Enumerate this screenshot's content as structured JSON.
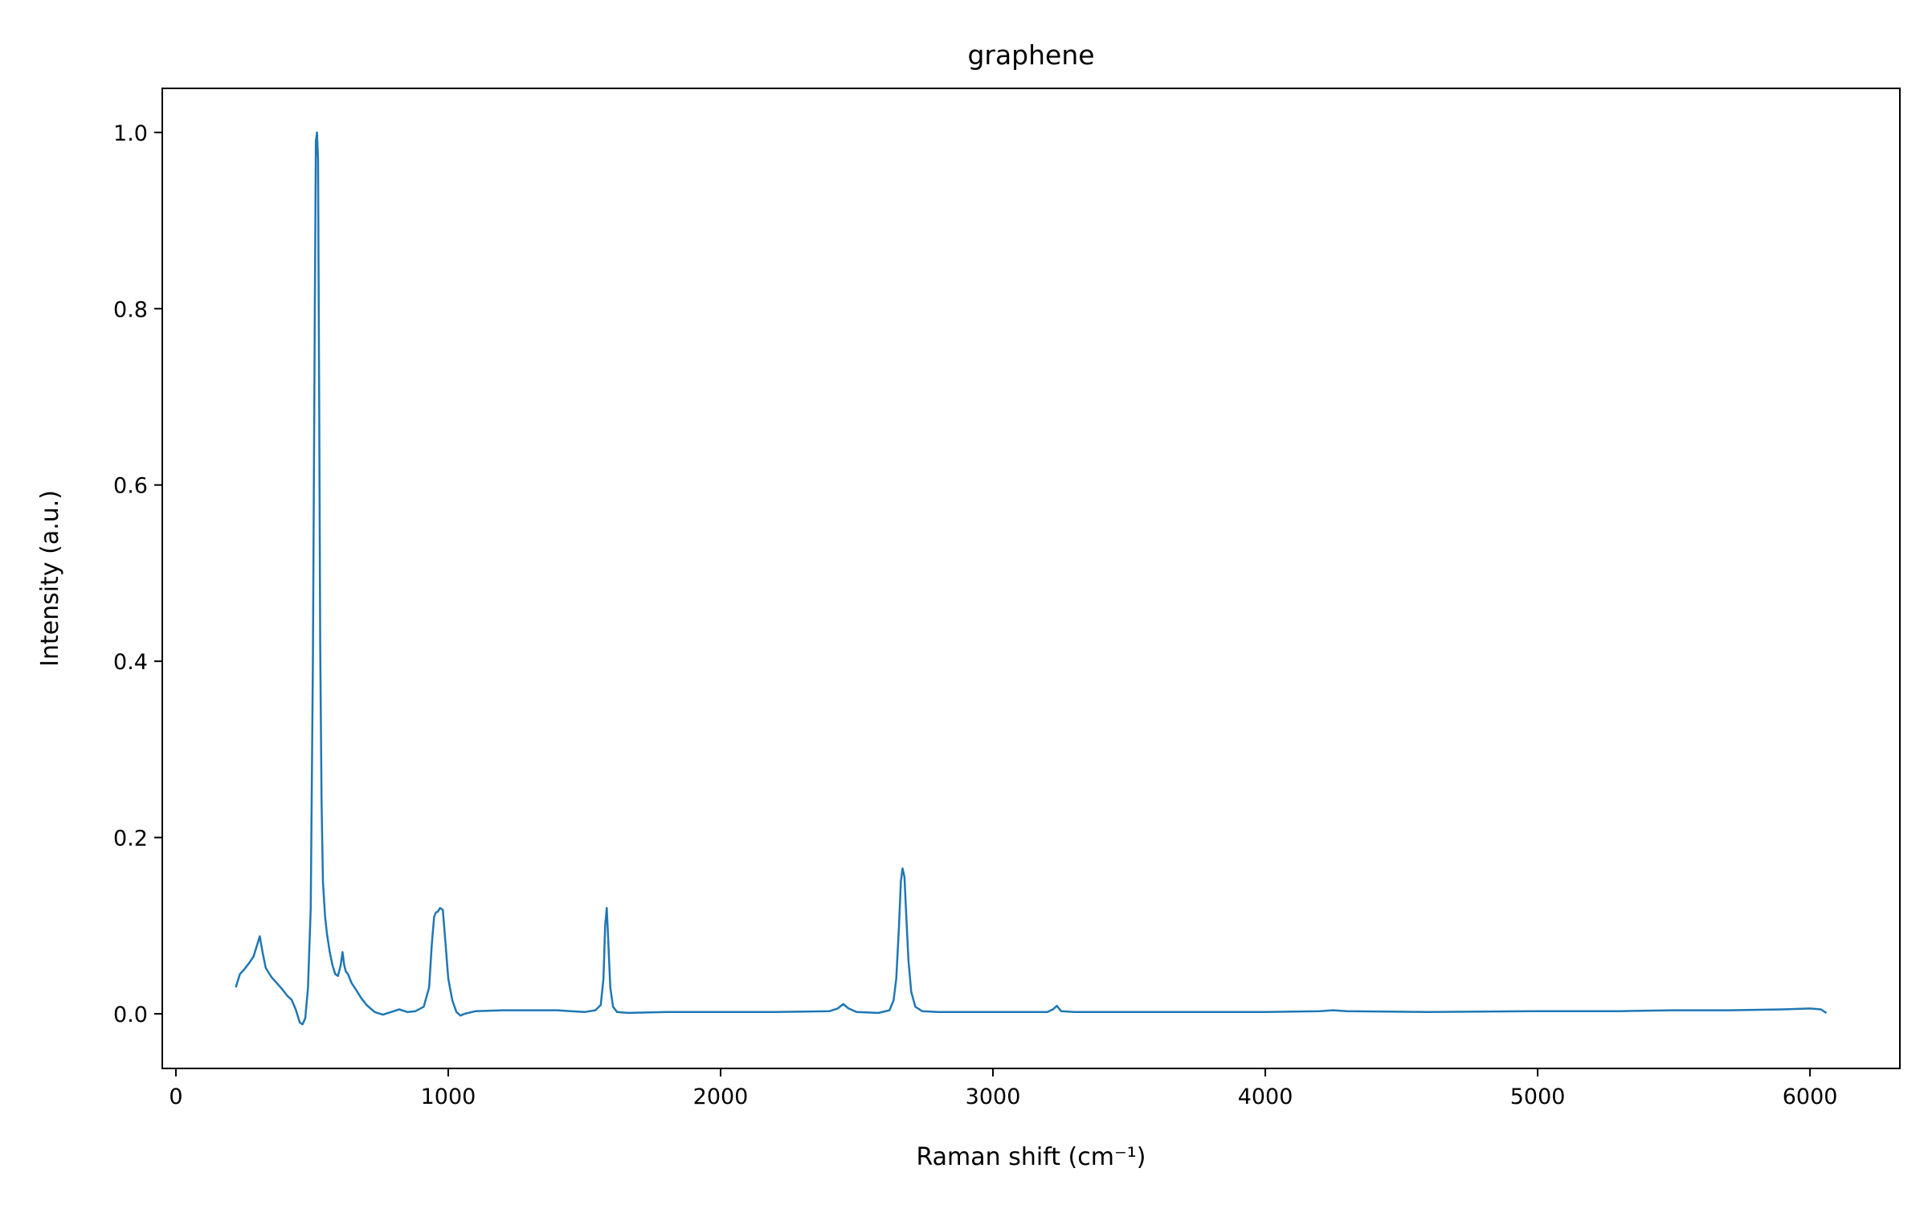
{
  "chart_data": {
    "type": "line",
    "title": "graphene",
    "xlabel": "Raman shift (cm⁻¹)",
    "ylabel": "Intensity (a.u.)",
    "xlim": [
      -50,
      6330
    ],
    "ylim": [
      -0.062,
      1.05
    ],
    "xticks": [
      0,
      1000,
      2000,
      3000,
      4000,
      5000,
      6000
    ],
    "yticks": [
      0.0,
      0.2,
      0.4,
      0.6,
      0.8,
      1.0
    ],
    "ytick_labels": [
      "0.0",
      "0.2",
      "0.4",
      "0.6",
      "0.8",
      "1.0"
    ],
    "grid": false,
    "legend": "none",
    "series": [
      {
        "color": "#1f77b4",
        "x": [
          220,
          235,
          250,
          270,
          285,
          300,
          308,
          318,
          330,
          350,
          370,
          390,
          410,
          425,
          440,
          455,
          465,
          475,
          485,
          495,
          503,
          510,
          514,
          518,
          522,
          526,
          530,
          535,
          540,
          548,
          555,
          565,
          575,
          585,
          595,
          605,
          612,
          618,
          624,
          632,
          645,
          660,
          680,
          700,
          730,
          760,
          790,
          820,
          850,
          880,
          910,
          930,
          940,
          948,
          955,
          962,
          970,
          980,
          990,
          1000,
          1015,
          1030,
          1045,
          1060,
          1100,
          1200,
          1300,
          1400,
          1450,
          1500,
          1540,
          1560,
          1570,
          1576,
          1582,
          1588,
          1595,
          1605,
          1620,
          1660,
          1800,
          2000,
          2200,
          2400,
          2430,
          2450,
          2470,
          2500,
          2580,
          2620,
          2635,
          2645,
          2655,
          2662,
          2668,
          2675,
          2682,
          2690,
          2700,
          2715,
          2740,
          2800,
          3000,
          3200,
          3220,
          3235,
          3250,
          3300,
          3600,
          4000,
          4200,
          4250,
          4300,
          4600,
          5000,
          5300,
          5500,
          5700,
          5900,
          6000,
          6040,
          6060
        ],
        "y": [
          0.03,
          0.045,
          0.05,
          0.058,
          0.065,
          0.08,
          0.088,
          0.07,
          0.052,
          0.042,
          0.035,
          0.028,
          0.02,
          0.016,
          0.005,
          -0.01,
          -0.012,
          -0.005,
          0.03,
          0.12,
          0.4,
          0.8,
          0.99,
          1.0,
          0.97,
          0.7,
          0.42,
          0.24,
          0.15,
          0.11,
          0.09,
          0.07,
          0.055,
          0.045,
          0.043,
          0.055,
          0.07,
          0.055,
          0.048,
          0.045,
          0.035,
          0.028,
          0.018,
          0.01,
          0.002,
          -0.001,
          0.002,
          0.005,
          0.002,
          0.003,
          0.008,
          0.03,
          0.08,
          0.11,
          0.115,
          0.116,
          0.12,
          0.118,
          0.08,
          0.04,
          0.015,
          0.002,
          -0.002,
          0.0,
          0.003,
          0.004,
          0.004,
          0.004,
          0.003,
          0.002,
          0.004,
          0.01,
          0.04,
          0.1,
          0.12,
          0.08,
          0.03,
          0.008,
          0.002,
          0.001,
          0.002,
          0.002,
          0.002,
          0.003,
          0.006,
          0.011,
          0.006,
          0.002,
          0.001,
          0.004,
          0.015,
          0.04,
          0.1,
          0.15,
          0.165,
          0.155,
          0.11,
          0.06,
          0.025,
          0.008,
          0.003,
          0.002,
          0.002,
          0.002,
          0.005,
          0.009,
          0.003,
          0.002,
          0.002,
          0.002,
          0.003,
          0.004,
          0.003,
          0.002,
          0.003,
          0.003,
          0.004,
          0.004,
          0.005,
          0.006,
          0.005,
          0.001
        ]
      }
    ]
  }
}
